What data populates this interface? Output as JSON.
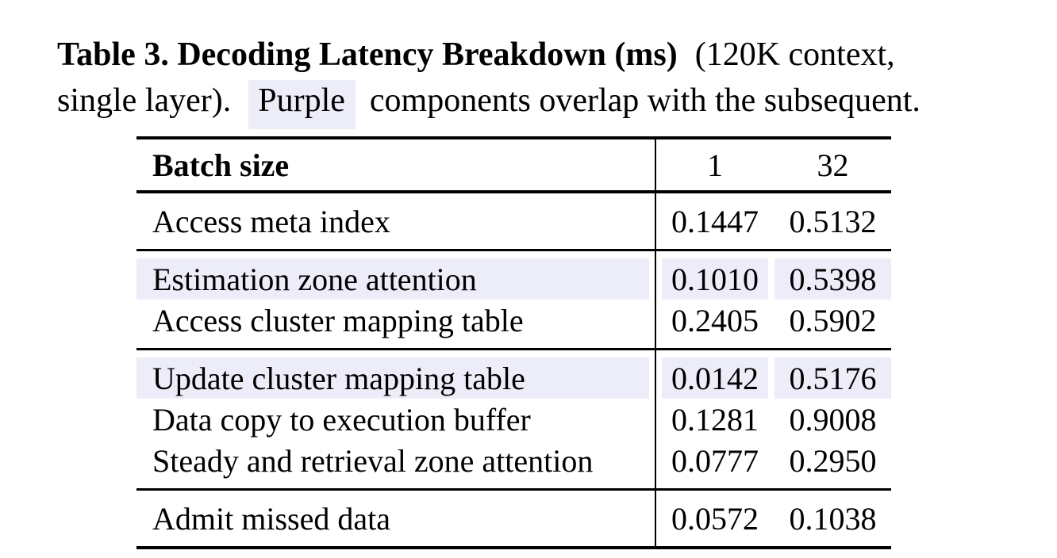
{
  "caption": {
    "title_bold": "Table 3. Decoding Latency Breakdown (ms)",
    "title_rest": "(120K context,",
    "line2_pre": "single layer).",
    "highlight_word": "Purple",
    "line2_post": "components overlap with the subsequent."
  },
  "table": {
    "header": {
      "label": "Batch size",
      "columns": [
        "1",
        "32"
      ]
    },
    "groups": [
      {
        "rows": [
          {
            "label": "Access meta index",
            "values": [
              "0.1447",
              "0.5132"
            ],
            "highlight": false
          }
        ]
      },
      {
        "rows": [
          {
            "label": "Estimation zone attention",
            "values": [
              "0.1010",
              "0.5398"
            ],
            "highlight": true
          },
          {
            "label": "Access cluster mapping table",
            "values": [
              "0.2405",
              "0.5902"
            ],
            "highlight": false
          }
        ]
      },
      {
        "rows": [
          {
            "label": "Update cluster mapping table",
            "values": [
              "0.0142",
              "0.5176"
            ],
            "highlight": true
          },
          {
            "label": "Data copy to execution buffer",
            "values": [
              "0.1281",
              "0.9008"
            ],
            "highlight": false
          },
          {
            "label": "Steady and retrieval zone attention",
            "values": [
              "0.0777",
              "0.2950"
            ],
            "highlight": false
          }
        ]
      },
      {
        "rows": [
          {
            "label": "Admit missed data",
            "values": [
              "0.0572",
              "0.1038"
            ],
            "highlight": false
          }
        ]
      }
    ]
  },
  "colors": {
    "highlight": "#EDEDFA",
    "text": "#000000",
    "rule": "#000000",
    "background": "#FFFFFF"
  }
}
